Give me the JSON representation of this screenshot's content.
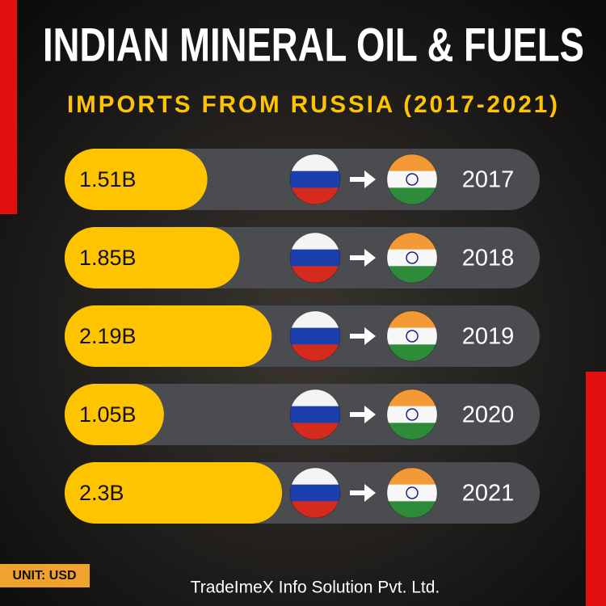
{
  "chart_data": {
    "type": "bar",
    "orientation": "horizontal",
    "title": "INDIAN MINERAL OIL & FUELS",
    "subtitle": "IMPORTS FROM RUSSIA (2017-2021)",
    "categories": [
      "2017",
      "2018",
      "2019",
      "2020",
      "2021"
    ],
    "values": [
      1.51,
      1.85,
      2.19,
      1.05,
      2.3
    ],
    "value_labels": [
      "1.51B",
      "1.85B",
      "2.19B",
      "1.05B",
      "2.3B"
    ],
    "color": "#FFC400",
    "unit_label": "UNIT: USD",
    "footer": "TradeImeX Info Solution Pvt. Ltd."
  }
}
